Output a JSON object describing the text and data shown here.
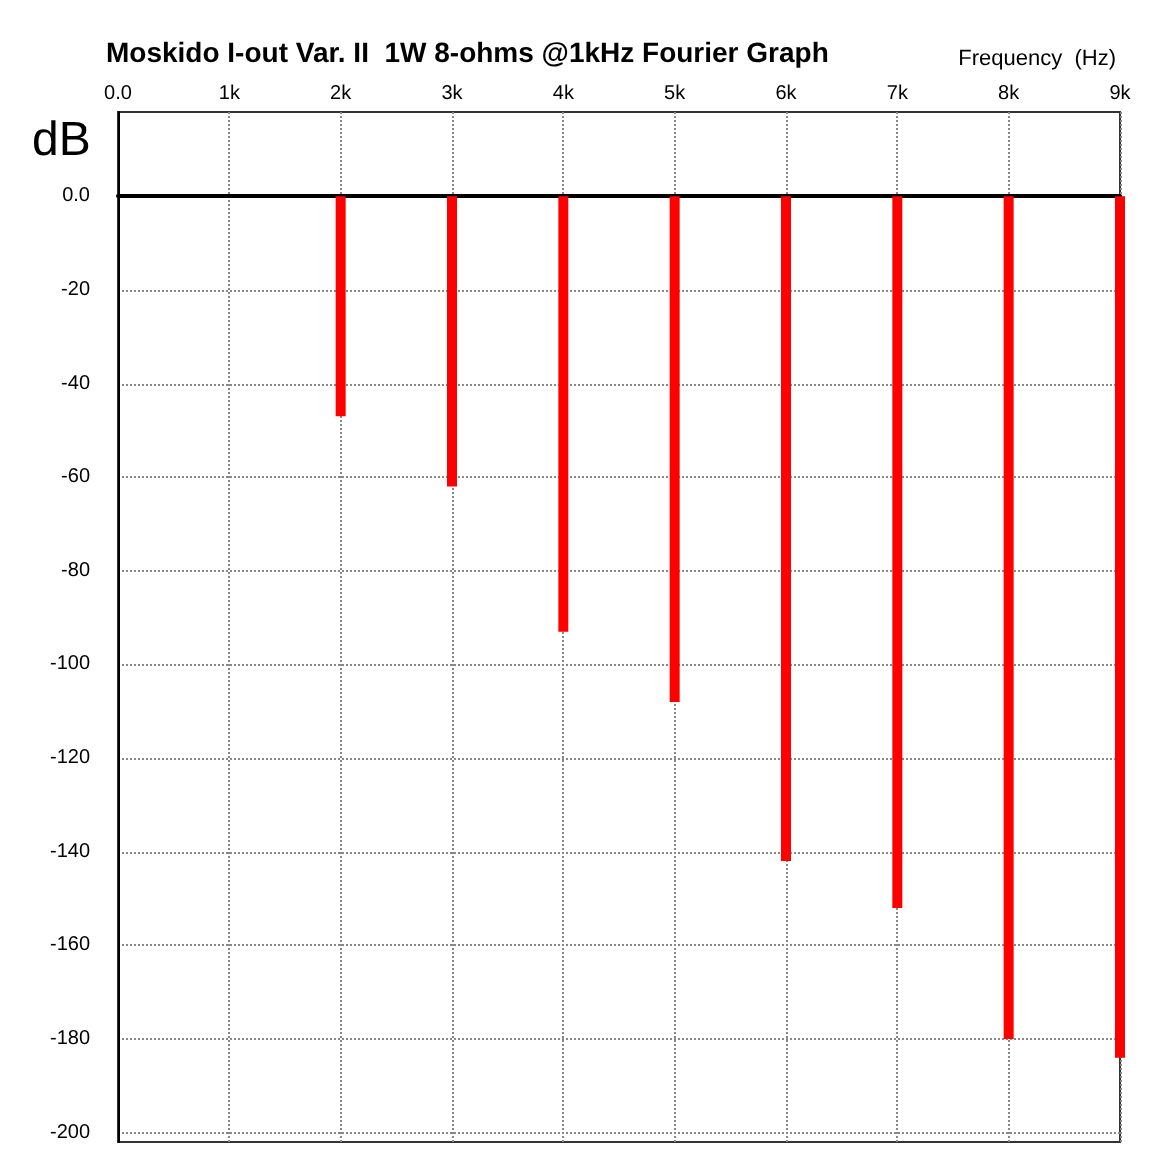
{
  "chart_data": {
    "type": "bar",
    "title": "Moskido I-out Var. II  1W 8-ohms @1kHz Fourier Graph",
    "xlabel": "Frequency  (Hz)",
    "ylabel": "dB",
    "x": [
      1000,
      2000,
      3000,
      4000,
      5000,
      6000,
      7000,
      8000,
      9000
    ],
    "values": [
      0,
      -47,
      -62,
      -93,
      -108,
      -142,
      -152,
      -180,
      -184
    ],
    "color": "#ff0000",
    "xlim": [
      0,
      9000
    ],
    "xticks": [
      {
        "value": 0,
        "label": "0.0"
      },
      {
        "value": 1000,
        "label": "1k"
      },
      {
        "value": 2000,
        "label": "2k"
      },
      {
        "value": 3000,
        "label": "3k"
      },
      {
        "value": 4000,
        "label": "4k"
      },
      {
        "value": 5000,
        "label": "5k"
      },
      {
        "value": 6000,
        "label": "6k"
      },
      {
        "value": 7000,
        "label": "7k"
      },
      {
        "value": 8000,
        "label": "8k"
      },
      {
        "value": 9000,
        "label": "9k"
      }
    ],
    "ylim": [
      -202,
      18
    ],
    "yticks": [
      {
        "value": 0,
        "label": "0.0"
      },
      -20,
      -40,
      -60,
      -80,
      -100,
      -120,
      -140,
      -160,
      -180,
      -200
    ],
    "grid": true
  }
}
